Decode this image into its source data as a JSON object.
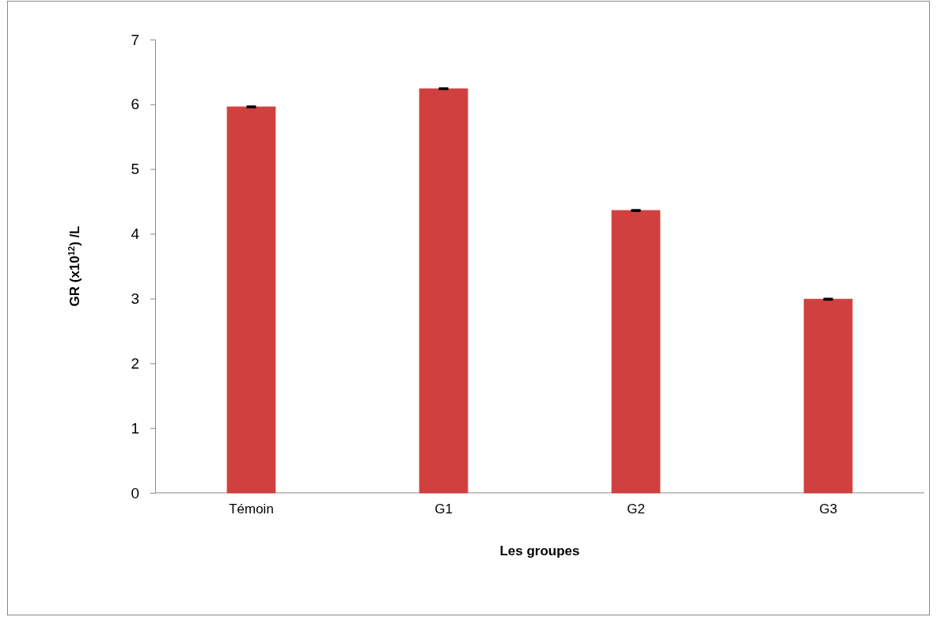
{
  "chart_data": {
    "type": "bar",
    "xlabel": "Les groupes",
    "ylabel": "GR (x10$^{12}$) /L",
    "categories": [
      "Témoin",
      "G1",
      "G2",
      "G3"
    ],
    "values": [
      5.96,
      6.24,
      4.36,
      2.99
    ],
    "errors": [
      0.01,
      0.01,
      0.01,
      0.01
    ],
    "color": "#d0403e",
    "ylim": [
      0,
      7
    ],
    "yticks": [
      0,
      1,
      2,
      3,
      4,
      5,
      6,
      7
    ],
    "grid": false
  }
}
